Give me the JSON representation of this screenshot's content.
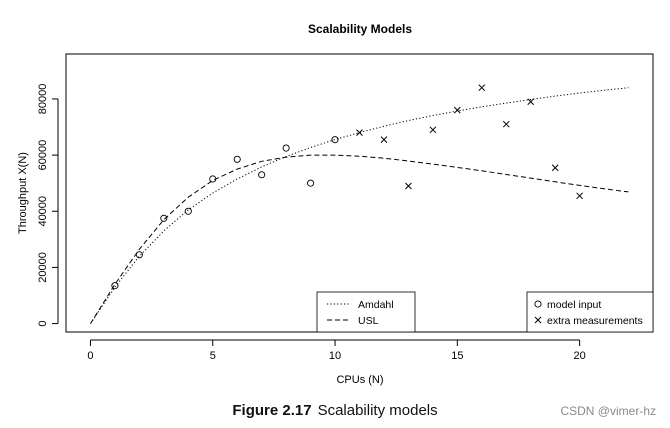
{
  "caption": {
    "label": "Figure 2.17",
    "text": "Scalability models"
  },
  "watermark": "CSDN @vimer-hz",
  "chart_data": {
    "type": "scatter",
    "title": "Scalability Models",
    "xlabel": "CPUs (N)",
    "ylabel": "Throughput X(N)",
    "xlim": [
      -1,
      23
    ],
    "ylim": [
      -3000,
      96000
    ],
    "xticks": [
      0,
      5,
      10,
      15,
      20
    ],
    "yticks": [
      0,
      20000,
      40000,
      60000,
      80000
    ],
    "grid": false,
    "model_input": {
      "name": "model input",
      "marker": "circle",
      "x": [
        1,
        2,
        3,
        4,
        5,
        6,
        7,
        8,
        9,
        10
      ],
      "y": [
        13500,
        24500,
        37500,
        40000,
        51500,
        58500,
        53000,
        62500,
        50000,
        65500
      ]
    },
    "extra_measurements": {
      "name": "extra measurements",
      "marker": "cross",
      "x": [
        11,
        12,
        13,
        14,
        15,
        16,
        17,
        18,
        19,
        20
      ],
      "y": [
        68000,
        65500,
        49000,
        69000,
        76000,
        84000,
        71000,
        79000,
        55500,
        45500
      ]
    },
    "curves": [
      {
        "name": "Amdahl",
        "style": "dotted",
        "x": [
          0,
          1,
          2,
          3,
          4,
          5,
          6,
          7,
          8,
          9,
          10,
          11,
          12,
          13,
          14,
          15,
          16,
          17,
          18,
          19,
          20,
          21,
          22
        ],
        "y": [
          0,
          13000,
          24000,
          33000,
          40500,
          46500,
          51500,
          55800,
          59500,
          62700,
          65500,
          68000,
          70300,
          72300,
          74100,
          75700,
          77200,
          78500,
          79800,
          81000,
          82100,
          83100,
          84000
        ]
      },
      {
        "name": "USL",
        "style": "dashed",
        "x": [
          0,
          1,
          2,
          3,
          4,
          5,
          6,
          7,
          8,
          9,
          10,
          11,
          12,
          13,
          14,
          15,
          16,
          17,
          18,
          19,
          20,
          21,
          22
        ],
        "y": [
          0,
          14000,
          26500,
          37000,
          45000,
          51000,
          55000,
          57800,
          59300,
          60000,
          60000,
          59600,
          58900,
          57900,
          56800,
          55600,
          54400,
          53100,
          51800,
          50500,
          49200,
          48000,
          46900
        ]
      }
    ],
    "legends": [
      {
        "position": "bottom-center",
        "entries": [
          "Amdahl",
          "USL"
        ]
      },
      {
        "position": "bottom-right",
        "entries": [
          "model input",
          "extra measurements"
        ]
      }
    ]
  }
}
